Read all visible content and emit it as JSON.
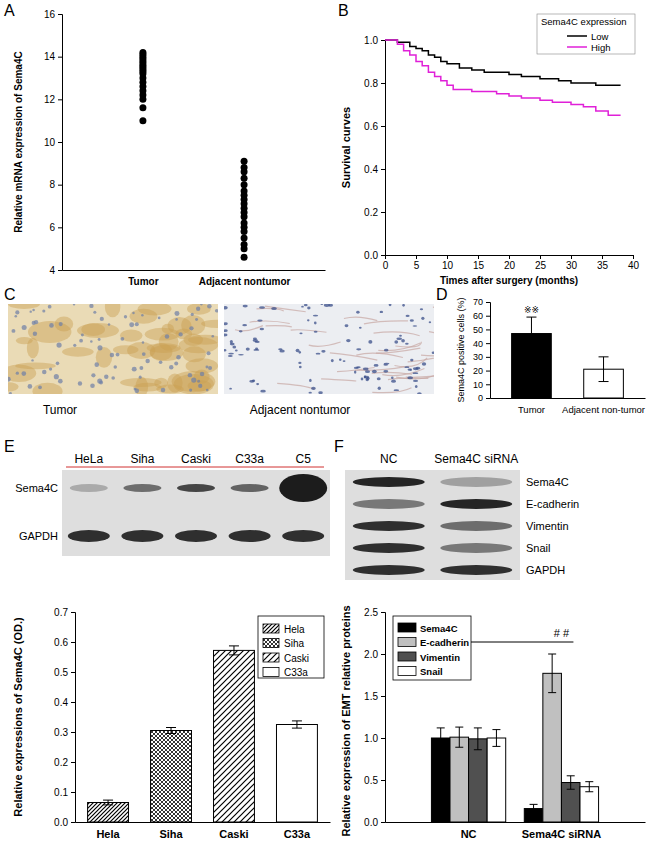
{
  "chart_data": [
    {
      "type": "scatter",
      "panel": "A",
      "y_label": "Relative mRNA expression of Sema4C",
      "categories": [
        "Tumor",
        "Adjacent nontumor"
      ],
      "values": [
        [
          14.2,
          14.1,
          14.0,
          13.9,
          13.8,
          13.7,
          13.6,
          13.5,
          13.4,
          13.3,
          13.2,
          13.0,
          12.8,
          12.6,
          12.4,
          12.2,
          12.0,
          11.6,
          11.0
        ],
        [
          9.1,
          8.8,
          8.6,
          8.3,
          8.0,
          7.7,
          7.5,
          7.3,
          7.1,
          6.9,
          6.7,
          6.5,
          6.2,
          6.0,
          5.8,
          5.5,
          5.2,
          5.0,
          4.6
        ]
      ],
      "color": "#000000",
      "marker": "circle",
      "ylim": [
        4,
        16
      ],
      "yticks": [
        4,
        6,
        8,
        10,
        12,
        14,
        16
      ]
    },
    {
      "type": "line",
      "panel": "B",
      "x_label": "Times after surgery (months)",
      "y_label": "Survival curves",
      "legend_title": "Sema4C expression",
      "legend": "top-right",
      "line_style": "step",
      "series": [
        {
          "name": "Low",
          "color": "#000000",
          "x": [
            0,
            2,
            4,
            5,
            6,
            7,
            8,
            9,
            10,
            12,
            14,
            16,
            20,
            22,
            25,
            28,
            30,
            34,
            38
          ],
          "values": [
            1.0,
            0.99,
            0.97,
            0.96,
            0.95,
            0.93,
            0.92,
            0.9,
            0.89,
            0.87,
            0.86,
            0.85,
            0.84,
            0.83,
            0.82,
            0.81,
            0.8,
            0.79,
            0.79
          ]
        },
        {
          "name": "High",
          "color": "#e020d8",
          "x": [
            0,
            2,
            3,
            4,
            5,
            6,
            7,
            8,
            9,
            10,
            11,
            14,
            18,
            20,
            22,
            25,
            27,
            30,
            32,
            34,
            36,
            38
          ],
          "values": [
            1.0,
            0.98,
            0.95,
            0.93,
            0.9,
            0.88,
            0.85,
            0.83,
            0.81,
            0.79,
            0.77,
            0.76,
            0.75,
            0.74,
            0.73,
            0.72,
            0.71,
            0.7,
            0.69,
            0.67,
            0.65,
            0.65
          ]
        }
      ],
      "xlim": [
        0,
        40
      ],
      "xticks": [
        0,
        5,
        10,
        15,
        20,
        25,
        30,
        35,
        40
      ],
      "ylim": [
        0,
        1
      ],
      "yticks": [
        {
          "value": 0,
          "label": "0.0"
        },
        {
          "value": 0.2,
          "label": "0.2"
        },
        {
          "value": 0.4,
          "label": "0.4"
        },
        {
          "value": 0.6,
          "label": "0.6"
        },
        {
          "value": 0.8,
          "label": "0.8"
        },
        {
          "value": 1,
          "label": "1.0"
        }
      ]
    },
    {
      "type": "bar",
      "panel": "D",
      "y_label": "Sema4C positive cells (%)",
      "categories": [
        "Tumor",
        "Adjacent non-tumor"
      ],
      "values": [
        47,
        21
      ],
      "errors": [
        12,
        9
      ],
      "colors": [
        "#000000",
        "#ffffff"
      ],
      "annotation": "※※",
      "ylim": [
        0,
        70
      ],
      "yticks": [
        0,
        10,
        20,
        30,
        40,
        50,
        60,
        70
      ]
    },
    {
      "type": "bar",
      "panel": "E",
      "y_label": "Relative expressions of Sema4C (OD.)",
      "categories": [
        "Hela",
        "Siha",
        "Caski",
        "C33a"
      ],
      "values": [
        0.065,
        0.305,
        0.572,
        0.325
      ],
      "errors": [
        0.008,
        0.01,
        0.015,
        0.012
      ],
      "colors": [
        "#000000",
        "#000000",
        "#000000",
        "#ffffff"
      ],
      "legend": "top-right",
      "ylim": [
        0,
        0.7
      ],
      "yticks": [
        {
          "value": 0,
          "label": "0.0"
        },
        {
          "value": 0.1,
          "label": "0.1"
        },
        {
          "value": 0.2,
          "label": "0.2"
        },
        {
          "value": 0.3,
          "label": "0.3"
        },
        {
          "value": 0.4,
          "label": "0.4"
        },
        {
          "value": 0.5,
          "label": "0.5"
        },
        {
          "value": 0.6,
          "label": "0.6"
        },
        {
          "value": 0.7,
          "label": "0.7"
        }
      ]
    },
    {
      "type": "bar",
      "panel": "F",
      "y_label": "Relative expression of EMT relative proteins",
      "categories": [
        "NC",
        "Sema4C siRNA"
      ],
      "series": [
        {
          "name": "Sema4C",
          "color": "#000000",
          "values": [
            1.0,
            0.16
          ],
          "errors": [
            0.12,
            0.05
          ]
        },
        {
          "name": "E-cadherin",
          "color": "#c0c0c0",
          "values": [
            1.01,
            1.77
          ],
          "errors": [
            0.12,
            0.23
          ]
        },
        {
          "name": "Vimentin",
          "color": "#505050",
          "values": [
            0.99,
            0.47
          ],
          "errors": [
            0.13,
            0.08
          ]
        },
        {
          "name": "Snail",
          "color": "#ffffff",
          "values": [
            1.0,
            0.42
          ],
          "errors": [
            0.1,
            0.06
          ]
        }
      ],
      "legend": "top-left",
      "annotation": "# #",
      "ylim": [
        0,
        2.5
      ],
      "yticks": [
        {
          "value": 0,
          "label": "0.0"
        },
        {
          "value": 0.5,
          "label": "0.5"
        },
        {
          "value": 1,
          "label": "1.0"
        },
        {
          "value": 1.5,
          "label": "1.5"
        },
        {
          "value": 2,
          "label": "2.0"
        },
        {
          "value": 2.5,
          "label": "2.5"
        }
      ]
    }
  ],
  "figures": [
    {
      "type": "micrographs",
      "panel": "C",
      "labels": [
        "Tumor",
        "Adjacent nontumor"
      ]
    },
    {
      "type": "western_blot",
      "lanes": [
        "HeLa",
        "Siha",
        "Caski",
        "C33a",
        "C5"
      ],
      "rows": [
        "Sema4C",
        "GAPDH"
      ]
    },
    {
      "type": "western_blot",
      "lanes": [
        "NC",
        "Sema4C siRNA"
      ],
      "rows": [
        "Sema4C",
        "E-cadherin",
        "Vimentin",
        "Snail",
        "GAPDH"
      ]
    }
  ]
}
